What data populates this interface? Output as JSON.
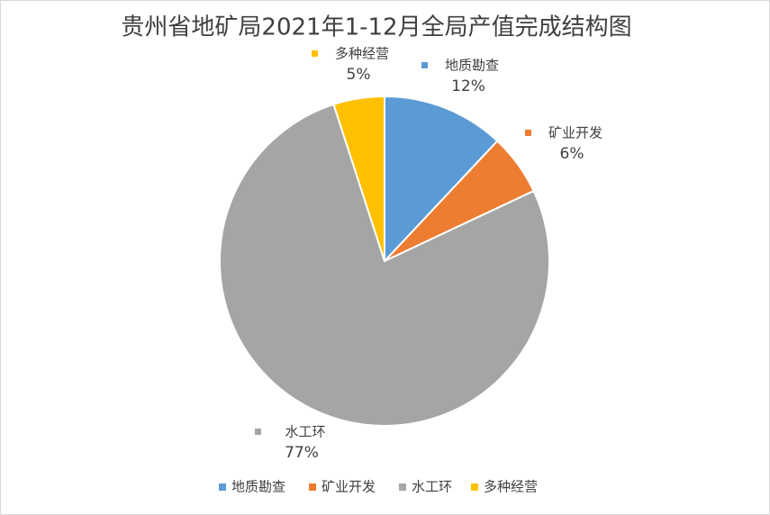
{
  "chart_data": {
    "type": "pie",
    "title": "贵州省地矿局2021年1-12月全局产值完成结构图",
    "categories": [
      "地质勘查",
      "矿业开发",
      "水工环",
      "多种经营"
    ],
    "values": [
      12,
      6,
      77,
      5
    ],
    "value_labels": [
      "12%",
      "6%",
      "77%",
      "5%"
    ],
    "colors": [
      "#5b9bd5",
      "#ed7d31",
      "#a5a5a5",
      "#ffc000"
    ],
    "legend": "bottom"
  }
}
